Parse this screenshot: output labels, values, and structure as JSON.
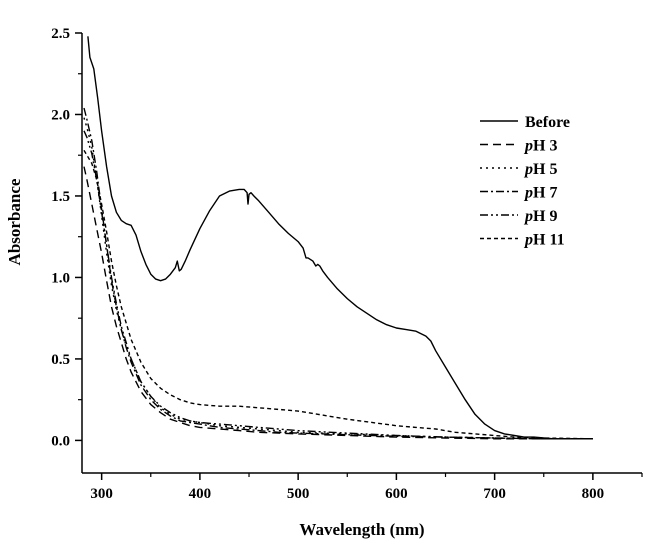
{
  "chart_data": {
    "type": "line",
    "xlabel": "Wavelength (nm)",
    "ylabel": "Absorbance",
    "xlim": [
      280,
      850
    ],
    "ylim": [
      -0.2,
      2.5
    ],
    "xticks": [
      300,
      400,
      500,
      600,
      700,
      800
    ],
    "yticks": [
      0.0,
      0.5,
      1.0,
      1.5,
      2.0,
      2.5
    ],
    "xtick_labels": [
      "300",
      "400",
      "500",
      "600",
      "700",
      "800"
    ],
    "ytick_labels": [
      "0.0",
      "0.5",
      "1.0",
      "1.5",
      "2.0",
      "2.5"
    ],
    "legend_position": "top-right",
    "grid": false,
    "series": [
      {
        "name": "Before",
        "name_prefix": "",
        "name_main": "Before",
        "dash": "solid",
        "x": [
          286,
          288,
          292,
          296,
          300,
          305,
          310,
          315,
          320,
          325,
          330,
          335,
          340,
          345,
          350,
          355,
          360,
          365,
          370,
          375,
          377,
          379,
          381,
          385,
          390,
          400,
          410,
          420,
          430,
          440,
          445,
          448,
          449,
          450,
          452,
          455,
          460,
          470,
          480,
          490,
          500,
          505,
          508,
          510,
          515,
          518,
          520,
          522,
          525,
          530,
          540,
          550,
          560,
          570,
          580,
          590,
          600,
          610,
          620,
          630,
          635,
          640,
          650,
          660,
          670,
          680,
          690,
          700,
          710,
          720,
          730,
          740,
          760,
          780,
          800
        ],
        "y": [
          2.48,
          2.35,
          2.28,
          2.1,
          1.9,
          1.68,
          1.5,
          1.4,
          1.35,
          1.33,
          1.32,
          1.26,
          1.16,
          1.08,
          1.02,
          0.99,
          0.98,
          0.99,
          1.02,
          1.06,
          1.1,
          1.04,
          1.05,
          1.1,
          1.17,
          1.3,
          1.41,
          1.5,
          1.53,
          1.54,
          1.54,
          1.52,
          1.45,
          1.51,
          1.52,
          1.5,
          1.47,
          1.4,
          1.33,
          1.27,
          1.22,
          1.18,
          1.12,
          1.12,
          1.1,
          1.07,
          1.08,
          1.07,
          1.04,
          1.0,
          0.93,
          0.87,
          0.82,
          0.78,
          0.74,
          0.71,
          0.69,
          0.68,
          0.67,
          0.64,
          0.61,
          0.55,
          0.45,
          0.35,
          0.25,
          0.16,
          0.1,
          0.06,
          0.04,
          0.03,
          0.02,
          0.02,
          0.01,
          0.01,
          0.01
        ]
      },
      {
        "name": "pH 3",
        "name_prefix": "p",
        "name_main": "H 3",
        "dash": "8 5",
        "x": [
          282,
          285,
          290,
          295,
          300,
          305,
          310,
          315,
          320,
          325,
          330,
          340,
          350,
          360,
          370,
          380,
          390,
          400,
          420,
          440,
          460,
          480,
          500,
          550,
          600,
          650,
          700,
          750,
          800
        ],
        "y": [
          1.68,
          1.6,
          1.45,
          1.3,
          1.15,
          0.98,
          0.82,
          0.7,
          0.6,
          0.5,
          0.42,
          0.3,
          0.22,
          0.17,
          0.13,
          0.11,
          0.09,
          0.08,
          0.07,
          0.06,
          0.05,
          0.045,
          0.04,
          0.03,
          0.02,
          0.015,
          0.01,
          0.01,
          0.01
        ]
      },
      {
        "name": "pH 5",
        "name_prefix": "p",
        "name_main": "H 5",
        "dash": "2 4",
        "x": [
          282,
          285,
          290,
          295,
          300,
          305,
          310,
          315,
          320,
          325,
          330,
          340,
          350,
          360,
          370,
          380,
          390,
          400,
          420,
          440,
          460,
          480,
          500,
          550,
          600,
          650,
          700,
          750,
          800
        ],
        "y": [
          1.98,
          1.92,
          1.8,
          1.6,
          1.38,
          1.15,
          0.95,
          0.8,
          0.68,
          0.58,
          0.5,
          0.36,
          0.27,
          0.2,
          0.16,
          0.13,
          0.12,
          0.11,
          0.09,
          0.08,
          0.07,
          0.06,
          0.05,
          0.04,
          0.03,
          0.02,
          0.015,
          0.01,
          0.01
        ]
      },
      {
        "name": "pH 7",
        "name_prefix": "p",
        "name_main": "H 7",
        "dash": "8 3 2 3",
        "x": [
          282,
          285,
          290,
          295,
          300,
          305,
          310,
          315,
          320,
          325,
          330,
          340,
          350,
          360,
          370,
          380,
          390,
          400,
          420,
          440,
          460,
          480,
          500,
          550,
          600,
          650,
          700,
          750,
          800
        ],
        "y": [
          2.04,
          1.97,
          1.84,
          1.65,
          1.42,
          1.2,
          0.98,
          0.82,
          0.68,
          0.57,
          0.48,
          0.34,
          0.25,
          0.19,
          0.15,
          0.12,
          0.11,
          0.1,
          0.08,
          0.07,
          0.06,
          0.05,
          0.045,
          0.035,
          0.025,
          0.02,
          0.015,
          0.01,
          0.01
        ]
      },
      {
        "name": "pH 9",
        "name_prefix": "p",
        "name_main": "H 9",
        "dash": "8 3 2 3 2 3",
        "x": [
          282,
          285,
          290,
          295,
          300,
          305,
          310,
          315,
          320,
          325,
          330,
          340,
          350,
          360,
          370,
          380,
          390,
          400,
          420,
          440,
          460,
          480,
          500,
          550,
          600,
          650,
          700,
          750,
          800
        ],
        "y": [
          1.9,
          1.86,
          1.76,
          1.6,
          1.4,
          1.2,
          1.0,
          0.84,
          0.7,
          0.6,
          0.5,
          0.36,
          0.27,
          0.21,
          0.17,
          0.14,
          0.12,
          0.11,
          0.1,
          0.09,
          0.08,
          0.07,
          0.06,
          0.045,
          0.03,
          0.02,
          0.015,
          0.01,
          0.01
        ]
      },
      {
        "name": "pH 11",
        "name_prefix": "p",
        "name_main": "H 11",
        "dash": "4 3",
        "x": [
          282,
          285,
          290,
          295,
          300,
          305,
          310,
          315,
          320,
          325,
          330,
          340,
          350,
          360,
          370,
          380,
          390,
          400,
          420,
          440,
          460,
          480,
          500,
          520,
          550,
          600,
          620,
          640,
          660,
          680,
          700,
          720,
          750,
          800
        ],
        "y": [
          1.78,
          1.75,
          1.7,
          1.6,
          1.45,
          1.28,
          1.1,
          0.95,
          0.82,
          0.72,
          0.62,
          0.48,
          0.38,
          0.32,
          0.28,
          0.25,
          0.23,
          0.22,
          0.21,
          0.21,
          0.2,
          0.19,
          0.18,
          0.16,
          0.13,
          0.09,
          0.08,
          0.07,
          0.05,
          0.04,
          0.03,
          0.02,
          0.015,
          0.01
        ]
      }
    ]
  }
}
